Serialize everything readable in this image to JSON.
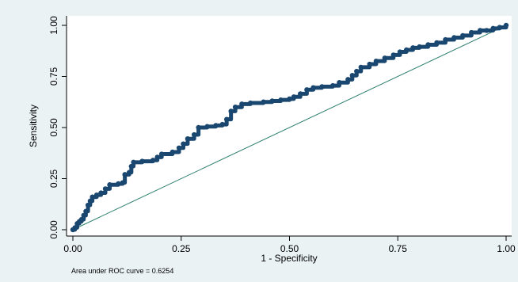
{
  "chart_data": {
    "type": "line",
    "title": "",
    "xlabel": "1 - Specificity",
    "ylabel": "Sensitivity",
    "xlim": [
      0,
      1
    ],
    "ylim": [
      0,
      1
    ],
    "xticks": [
      "0.00",
      "0.25",
      "0.50",
      "0.75",
      "1.00"
    ],
    "yticks": [
      "0.00",
      "0.25",
      "0.50",
      "0.75",
      "1.00"
    ],
    "grid": false,
    "legend": "none",
    "annotation": "Area under ROC curve = 0.6254",
    "colors": {
      "curve": "#1a476f",
      "reference": "#2d7f6e",
      "plot_bg": "#ffffff",
      "outer_bg": "#eaf2f3"
    },
    "series": [
      {
        "points": [
          [
            0.0,
            0.0
          ],
          [
            0.005,
            0.01
          ],
          [
            0.01,
            0.03
          ],
          [
            0.015,
            0.04
          ],
          [
            0.02,
            0.05
          ],
          [
            0.025,
            0.07
          ],
          [
            0.03,
            0.09
          ],
          [
            0.035,
            0.12
          ],
          [
            0.04,
            0.14
          ],
          [
            0.045,
            0.16
          ],
          [
            0.055,
            0.17
          ],
          [
            0.065,
            0.18
          ],
          [
            0.075,
            0.2
          ],
          [
            0.085,
            0.22
          ],
          [
            0.105,
            0.225
          ],
          [
            0.115,
            0.23
          ],
          [
            0.12,
            0.27
          ],
          [
            0.13,
            0.28
          ],
          [
            0.135,
            0.31
          ],
          [
            0.14,
            0.33
          ],
          [
            0.16,
            0.335
          ],
          [
            0.185,
            0.34
          ],
          [
            0.195,
            0.355
          ],
          [
            0.205,
            0.37
          ],
          [
            0.23,
            0.38
          ],
          [
            0.245,
            0.4
          ],
          [
            0.255,
            0.42
          ],
          [
            0.265,
            0.445
          ],
          [
            0.28,
            0.465
          ],
          [
            0.29,
            0.5
          ],
          [
            0.31,
            0.505
          ],
          [
            0.33,
            0.51
          ],
          [
            0.345,
            0.515
          ],
          [
            0.355,
            0.54
          ],
          [
            0.365,
            0.58
          ],
          [
            0.375,
            0.6
          ],
          [
            0.39,
            0.615
          ],
          [
            0.41,
            0.62
          ],
          [
            0.44,
            0.625
          ],
          [
            0.46,
            0.63
          ],
          [
            0.48,
            0.635
          ],
          [
            0.5,
            0.64
          ],
          [
            0.51,
            0.65
          ],
          [
            0.525,
            0.665
          ],
          [
            0.54,
            0.685
          ],
          [
            0.555,
            0.695
          ],
          [
            0.575,
            0.7
          ],
          [
            0.6,
            0.705
          ],
          [
            0.615,
            0.72
          ],
          [
            0.635,
            0.735
          ],
          [
            0.645,
            0.755
          ],
          [
            0.655,
            0.775
          ],
          [
            0.665,
            0.795
          ],
          [
            0.685,
            0.81
          ],
          [
            0.7,
            0.825
          ],
          [
            0.72,
            0.84
          ],
          [
            0.74,
            0.855
          ],
          [
            0.755,
            0.87
          ],
          [
            0.77,
            0.88
          ],
          [
            0.785,
            0.89
          ],
          [
            0.8,
            0.895
          ],
          [
            0.82,
            0.905
          ],
          [
            0.84,
            0.915
          ],
          [
            0.86,
            0.93
          ],
          [
            0.88,
            0.94
          ],
          [
            0.9,
            0.95
          ],
          [
            0.92,
            0.965
          ],
          [
            0.94,
            0.975
          ],
          [
            0.955,
            0.975
          ],
          [
            0.97,
            0.985
          ],
          [
            0.985,
            0.99
          ],
          [
            1.0,
            1.0
          ]
        ]
      }
    ]
  }
}
